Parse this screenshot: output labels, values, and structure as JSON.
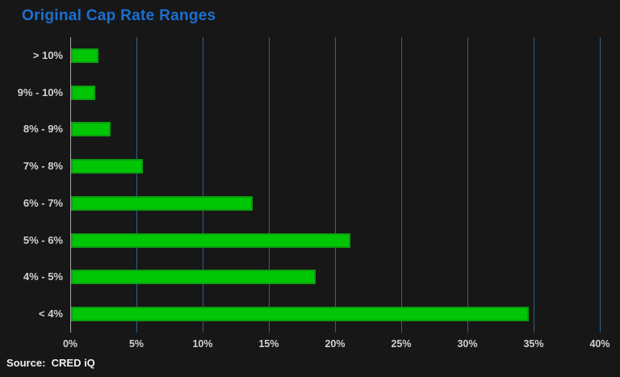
{
  "title": "Original Cap Rate Ranges",
  "source": {
    "text": "Source:  CRED iQ"
  },
  "colors": {
    "background": "#171717",
    "title": "#1c6fd2",
    "bar_fill": "#00c606",
    "bar_border": "#0c9e0e",
    "gridline": "#2b6391",
    "axis_line": "#a8a8a8",
    "tick_label": "#d2d2d2",
    "category_label": "#d2d2d2",
    "source_text": "#efefef"
  },
  "chart_data": {
    "type": "bar",
    "orientation": "horizontal",
    "title": "Original Cap Rate Ranges",
    "xlabel": "",
    "ylabel": "",
    "categories_top_to_bottom": [
      "> 10%",
      "9% - 10%",
      "8% - 9%",
      "7% - 8%",
      "6% - 7%",
      "5% - 6%",
      "4% - 5%",
      "< 4%"
    ],
    "values": [
      2.1,
      1.8,
      3.0,
      5.4,
      13.7,
      21.1,
      18.5,
      34.6
    ],
    "xlim": [
      0,
      40
    ],
    "x_ticks": [
      0,
      5,
      10,
      15,
      20,
      25,
      30,
      35,
      40
    ],
    "x_tick_labels": [
      "0%",
      "5%",
      "10%",
      "15%",
      "20%",
      "25%",
      "30%",
      "35%",
      "40%"
    ],
    "grid": "vertical",
    "legend": false,
    "source_label": "Source:  CRED iQ"
  }
}
